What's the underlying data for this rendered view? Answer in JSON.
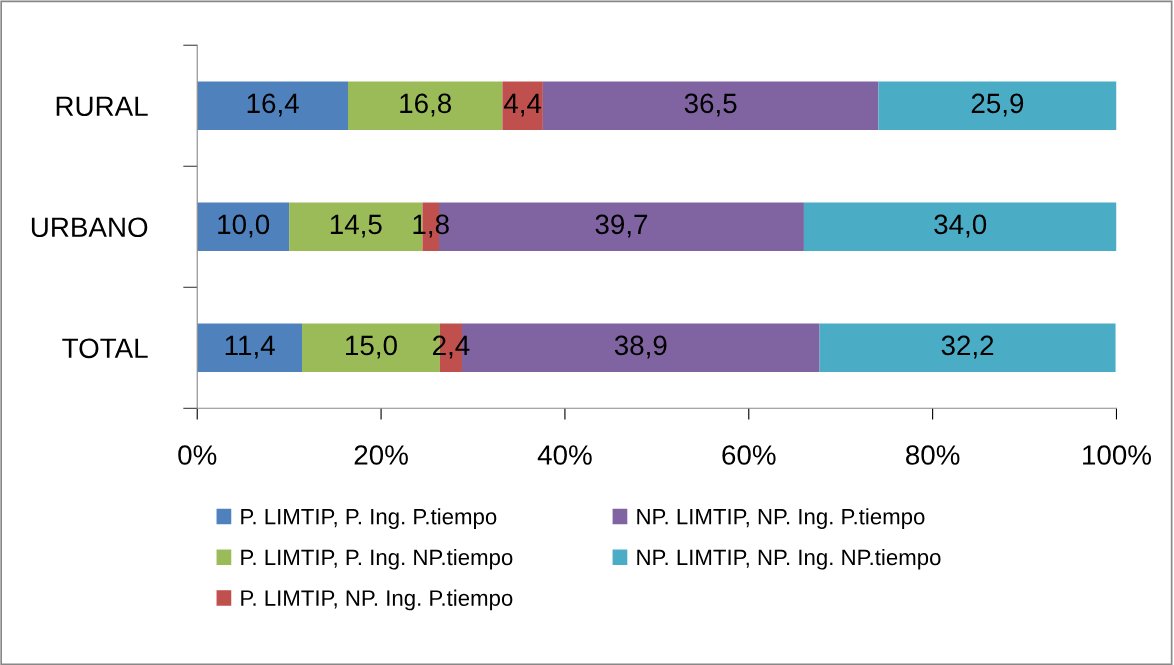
{
  "chart_data": {
    "type": "bar",
    "orientation": "horizontal",
    "stacked": true,
    "categories": [
      "RURAL",
      "URBANO",
      "TOTAL"
    ],
    "series": [
      {
        "name": "P. LIMTIP, P. Ing. P.tiempo",
        "color": "#4f81bd",
        "values": [
          16.4,
          10.0,
          11.4
        ],
        "value_labels": [
          "16,4",
          "10,0",
          "11,4"
        ]
      },
      {
        "name": "P. LIMTIP, P. Ing. NP.tiempo",
        "color": "#9bbb59",
        "values": [
          16.8,
          14.5,
          15.0
        ],
        "value_labels": [
          "16,8",
          "14,5",
          "15,0"
        ]
      },
      {
        "name": "P. LIMTIP, NP. Ing. P.tiempo",
        "color": "#c0504d",
        "values": [
          4.4,
          1.8,
          2.4
        ],
        "value_labels": [
          "4,4",
          "1,8",
          "2,4"
        ]
      },
      {
        "name": "NP. LIMTIP, NP. Ing. P.tiempo",
        "color": "#8064a2",
        "values": [
          36.5,
          39.7,
          38.9
        ],
        "value_labels": [
          "36,5",
          "39,7",
          "38,9"
        ]
      },
      {
        "name": "NP. LIMTIP, NP. Ing. NP.tiempo",
        "color": "#4bacc6",
        "values": [
          25.9,
          34.0,
          32.2
        ],
        "value_labels": [
          "25,9",
          "34,0",
          "32,2"
        ]
      }
    ],
    "xlim": [
      0,
      100
    ],
    "xticks": [
      {
        "value": 0,
        "label": "0%"
      },
      {
        "value": 20,
        "label": "20%"
      },
      {
        "value": 40,
        "label": "40%"
      },
      {
        "value": 60,
        "label": "60%"
      },
      {
        "value": 80,
        "label": "80%"
      },
      {
        "value": 100,
        "label": "100%"
      }
    ],
    "grid": false,
    "legend": "bottom"
  }
}
